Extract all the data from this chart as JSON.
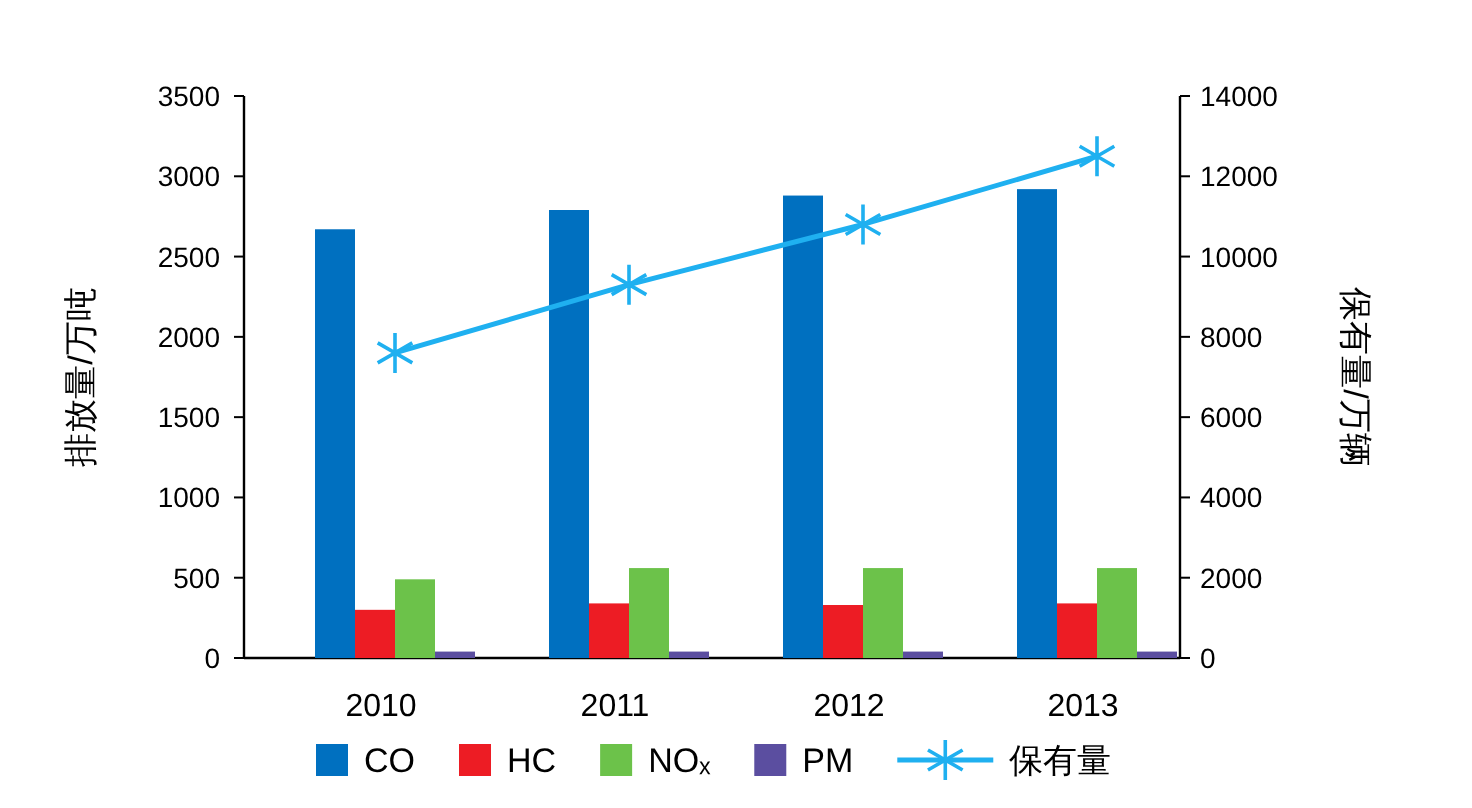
{
  "chart_data": {
    "type": "bar",
    "categories": [
      "2010",
      "2011",
      "2012",
      "2013"
    ],
    "series": [
      {
        "name": "CO",
        "color": "#0070c0",
        "values": [
          2670,
          2790,
          2880,
          2920
        ]
      },
      {
        "name": "HC",
        "color": "#ed1c24",
        "values": [
          300,
          340,
          330,
          340
        ]
      },
      {
        "name": "NOₓ",
        "color": "#6cc24a",
        "values": [
          490,
          560,
          560,
          560
        ]
      },
      {
        "name": "PM",
        "color": "#5b4ea0",
        "values": [
          40,
          40,
          40,
          40
        ]
      },
      {
        "name": "保有量",
        "color": "#1fb0f0",
        "type": "line",
        "axis": "y2",
        "marker": "cross",
        "values": [
          7600,
          9300,
          10800,
          12500
        ]
      }
    ],
    "ylabel": "排放量/万吨",
    "y2label": "保有量/万辆",
    "ylim": [
      0,
      3500
    ],
    "yticks": [
      0,
      500,
      1000,
      1500,
      2000,
      2500,
      3000,
      3500
    ],
    "y2lim": [
      0,
      14000
    ],
    "y2ticks": [
      0,
      2000,
      4000,
      6000,
      8000,
      10000,
      12000,
      14000
    ],
    "legend": "bottom"
  }
}
